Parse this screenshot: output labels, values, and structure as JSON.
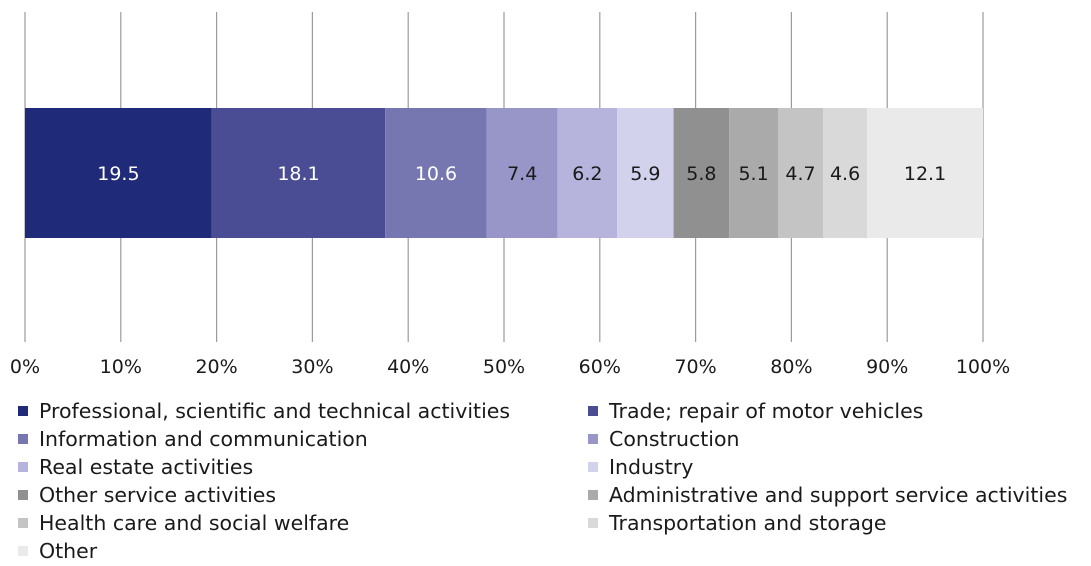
{
  "chart_data": {
    "type": "bar",
    "orientation": "horizontal-stacked-100",
    "title": "",
    "xlabel": "",
    "ylabel": "",
    "xlim": [
      0,
      100
    ],
    "x_ticks": [
      "0%",
      "10%",
      "20%",
      "30%",
      "40%",
      "50%",
      "60%",
      "70%",
      "80%",
      "90%",
      "100%"
    ],
    "grid": true,
    "legend_position": "bottom",
    "series": [
      {
        "name": "Professional, scientific and technical activities",
        "value": 19.5,
        "label": "19.5",
        "color": "#1f2a78"
      },
      {
        "name": "Trade; repair of motor vehicles",
        "value": 18.1,
        "label": "18.1",
        "color": "#4a4d94"
      },
      {
        "name": "Information and communication",
        "value": 10.6,
        "label": "10.6",
        "color": "#7676b1"
      },
      {
        "name": "Construction",
        "value": 7.4,
        "label": "7.4",
        "color": "#9896c8"
      },
      {
        "name": "Real estate activities",
        "value": 6.2,
        "label": "6.2",
        "color": "#b6b4dc"
      },
      {
        "name": "Industry",
        "value": 5.9,
        "label": "5.9",
        "color": "#d3d2ec"
      },
      {
        "name": "Other service activities",
        "value": 5.8,
        "label": "5.8",
        "color": "#8f908f"
      },
      {
        "name": "Administrative and support service activities",
        "value": 5.1,
        "label": "5.1",
        "color": "#a9aaa9"
      },
      {
        "name": "Health care and social welfare",
        "value": 4.7,
        "label": "4.7",
        "color": "#c3c4c3"
      },
      {
        "name": "Transportation and storage",
        "value": 4.6,
        "label": "4.6",
        "color": "#d8d9d8"
      },
      {
        "name": "Other",
        "value": 12.1,
        "label": "12.1",
        "color": "#e9eae9"
      }
    ]
  }
}
